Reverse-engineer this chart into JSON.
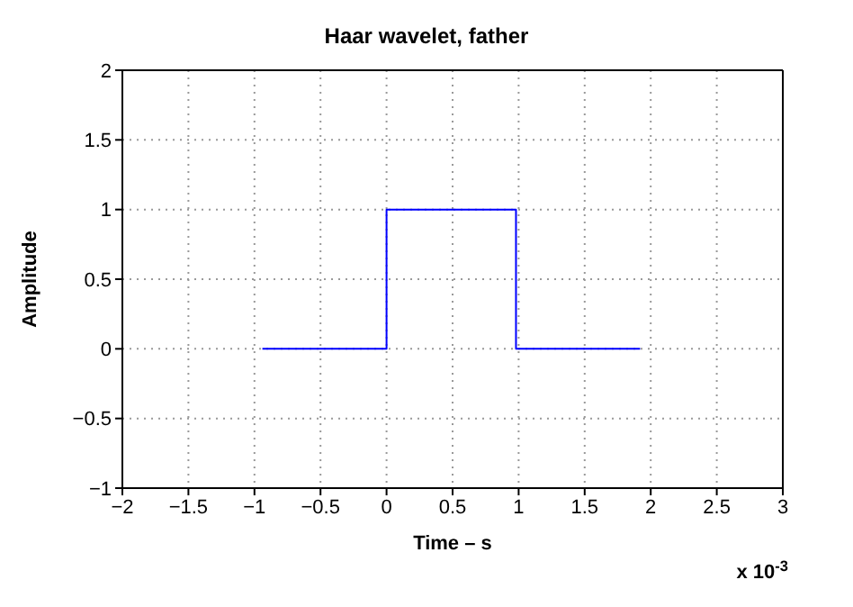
{
  "chart_data": {
    "type": "line",
    "title": "Haar wavelet, father",
    "xlabel": "Time – s",
    "ylabel": "Amplitude",
    "annotations": [
      "x 10$^{-3}$"
    ],
    "series": [
      {
        "color": "#0000ff",
        "x": [
          -0.94,
          0,
          0,
          0.98,
          0.98,
          1.92
        ],
        "values": [
          0,
          0,
          1,
          1,
          0,
          0
        ]
      }
    ],
    "xlim": [
      -2,
      3
    ],
    "xticks": [
      -2,
      -1.5,
      -1,
      -0.5,
      0,
      0.5,
      1,
      1.5,
      2,
      2.5,
      3
    ],
    "ylim": [
      -1,
      2
    ],
    "yticks": [
      -1,
      -0.5,
      0,
      0.5,
      1,
      1.5,
      2
    ],
    "grid": true,
    "legend": false,
    "marker": "none",
    "line_style": "solid"
  }
}
